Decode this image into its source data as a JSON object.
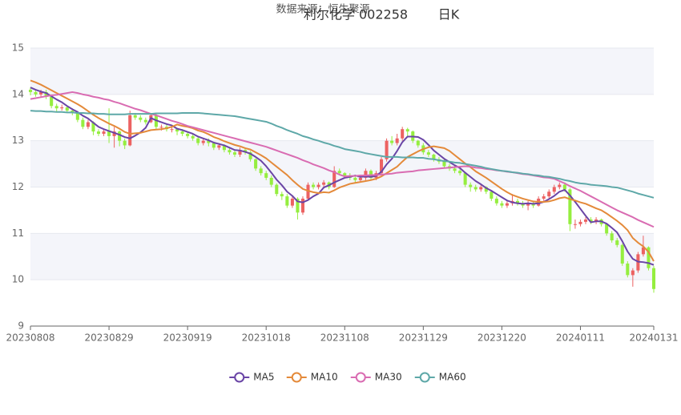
{
  "chart_data": {
    "type": "candlestick",
    "source": "数据来源：恒生聚源",
    "title": "利尔化学 002258",
    "subtitle": "日K",
    "categories": [
      "20230808",
      null,
      null,
      null,
      null,
      null,
      null,
      null,
      null,
      null,
      null,
      null,
      null,
      null,
      null,
      "20230829",
      null,
      null,
      null,
      null,
      null,
      null,
      null,
      null,
      null,
      null,
      null,
      null,
      null,
      null,
      "20230919",
      null,
      null,
      null,
      null,
      null,
      null,
      null,
      null,
      null,
      null,
      null,
      null,
      null,
      null,
      "20231018",
      null,
      null,
      null,
      null,
      null,
      null,
      null,
      null,
      null,
      null,
      null,
      null,
      null,
      null,
      "20231108",
      null,
      null,
      null,
      null,
      null,
      null,
      null,
      null,
      null,
      null,
      null,
      null,
      null,
      null,
      "20231129",
      null,
      null,
      null,
      null,
      null,
      null,
      null,
      null,
      null,
      null,
      null,
      null,
      null,
      null,
      "20231220",
      null,
      null,
      null,
      null,
      null,
      null,
      null,
      null,
      null,
      null,
      null,
      null,
      null,
      null,
      "20240111",
      null,
      null,
      null,
      null,
      null,
      null,
      null,
      null,
      null,
      null,
      null,
      null,
      null,
      "20240131"
    ],
    "candles": {
      "open": [
        14.1,
        14.05,
        14.0,
        14.05,
        13.95,
        13.75,
        13.7,
        13.72,
        13.65,
        13.6,
        13.45,
        13.3,
        13.4,
        13.2,
        13.15,
        13.2,
        13.1,
        13.2,
        13.0,
        12.9,
        13.55,
        13.5,
        13.45,
        13.4,
        13.55,
        13.3,
        13.3,
        13.25,
        13.25,
        13.2,
        13.15,
        13.1,
        13.05,
        12.95,
        13.0,
        12.95,
        12.85,
        12.9,
        12.8,
        12.75,
        12.7,
        12.8,
        12.75,
        12.6,
        12.4,
        12.3,
        12.2,
        12.05,
        11.85,
        11.8,
        11.6,
        11.75,
        11.45,
        11.75,
        12.05,
        12.0,
        12.05,
        12.1,
        12.0,
        12.35,
        12.3,
        12.25,
        12.2,
        12.15,
        12.2,
        12.35,
        12.2,
        12.3,
        12.6,
        13.0,
        12.95,
        13.05,
        13.25,
        13.2,
        13.0,
        12.9,
        12.75,
        12.7,
        12.6,
        12.55,
        12.45,
        12.4,
        12.35,
        12.3,
        12.05,
        12.0,
        11.95,
        12.0,
        11.9,
        11.75,
        11.65,
        11.6,
        11.65,
        11.7,
        11.65,
        11.6,
        11.65,
        11.6,
        11.75,
        11.8,
        11.9,
        12.0,
        12.05,
        11.95,
        11.2,
        11.2,
        11.25,
        11.3,
        11.25,
        11.3,
        11.2,
        11.0,
        10.85,
        10.75,
        10.35,
        10.1,
        10.2,
        10.55,
        10.7,
        10.25
      ],
      "close": [
        14.05,
        14.0,
        14.05,
        13.95,
        13.75,
        13.7,
        13.72,
        13.65,
        13.6,
        13.45,
        13.3,
        13.4,
        13.2,
        13.15,
        13.2,
        13.1,
        13.2,
        13.0,
        12.9,
        13.55,
        13.5,
        13.45,
        13.4,
        13.55,
        13.3,
        13.3,
        13.25,
        13.25,
        13.2,
        13.15,
        13.1,
        13.05,
        12.95,
        13.0,
        12.95,
        12.85,
        12.9,
        12.8,
        12.75,
        12.7,
        12.8,
        12.75,
        12.6,
        12.4,
        12.3,
        12.2,
        12.05,
        11.85,
        11.8,
        11.6,
        11.75,
        11.45,
        11.75,
        12.05,
        12.0,
        12.05,
        12.1,
        12.0,
        12.35,
        12.3,
        12.25,
        12.2,
        12.15,
        12.2,
        12.35,
        12.2,
        12.3,
        12.6,
        13.0,
        12.95,
        13.05,
        13.25,
        13.2,
        13.0,
        12.9,
        12.75,
        12.7,
        12.6,
        12.55,
        12.45,
        12.4,
        12.35,
        12.3,
        12.05,
        12.0,
        11.95,
        12.0,
        11.9,
        11.75,
        11.65,
        11.6,
        11.65,
        11.7,
        11.65,
        11.6,
        11.65,
        11.6,
        11.75,
        11.8,
        11.9,
        12.0,
        12.05,
        11.95,
        11.2,
        11.2,
        11.25,
        11.3,
        11.25,
        11.3,
        11.2,
        11.0,
        10.85,
        10.75,
        10.35,
        10.1,
        10.2,
        10.55,
        10.7,
        10.25,
        9.8
      ],
      "low": [
        13.98,
        13.95,
        13.95,
        13.9,
        13.7,
        13.62,
        13.65,
        13.6,
        13.55,
        13.4,
        13.25,
        13.25,
        13.12,
        13.1,
        13.1,
        12.95,
        12.85,
        12.88,
        12.82,
        12.88,
        13.45,
        13.4,
        13.35,
        13.38,
        13.25,
        13.22,
        13.2,
        13.18,
        13.12,
        13.1,
        13.05,
        13.0,
        12.9,
        12.9,
        12.88,
        12.8,
        12.8,
        12.75,
        12.7,
        12.65,
        12.65,
        12.7,
        12.55,
        12.35,
        12.25,
        12.15,
        12.0,
        11.8,
        11.72,
        11.55,
        11.55,
        11.3,
        11.4,
        11.72,
        11.95,
        11.95,
        12.0,
        11.95,
        11.98,
        12.25,
        12.2,
        12.15,
        12.1,
        12.1,
        12.15,
        12.15,
        12.15,
        12.28,
        12.55,
        12.9,
        12.9,
        13.0,
        13.1,
        12.95,
        12.85,
        12.7,
        12.65,
        12.55,
        12.5,
        12.4,
        12.35,
        12.3,
        12.25,
        12.0,
        11.9,
        11.9,
        11.9,
        11.85,
        11.7,
        11.6,
        11.55,
        11.55,
        11.6,
        11.6,
        11.55,
        11.5,
        11.55,
        11.58,
        11.7,
        11.75,
        11.85,
        11.95,
        11.9,
        11.05,
        11.1,
        11.15,
        11.2,
        11.2,
        11.2,
        11.15,
        10.95,
        10.8,
        10.7,
        10.3,
        10.05,
        9.85,
        10.15,
        10.5,
        10.2,
        9.72
      ],
      "high": [
        14.15,
        14.1,
        14.1,
        14.1,
        14.0,
        13.8,
        13.78,
        13.75,
        13.7,
        13.62,
        13.5,
        13.45,
        13.42,
        13.25,
        13.25,
        13.7,
        13.3,
        13.22,
        13.05,
        13.65,
        13.6,
        13.55,
        13.5,
        13.6,
        13.58,
        13.35,
        13.35,
        13.3,
        13.28,
        13.25,
        13.2,
        13.15,
        13.1,
        13.05,
        13.05,
        12.98,
        12.95,
        12.92,
        12.85,
        12.8,
        12.85,
        12.85,
        12.78,
        12.62,
        12.45,
        12.35,
        12.25,
        12.08,
        11.9,
        11.85,
        11.8,
        11.78,
        11.8,
        12.1,
        12.1,
        12.1,
        12.15,
        12.12,
        12.45,
        12.4,
        12.32,
        12.3,
        12.25,
        12.25,
        12.4,
        12.38,
        12.35,
        12.65,
        13.05,
        13.1,
        13.15,
        13.3,
        13.28,
        13.22,
        13.02,
        12.95,
        12.8,
        12.72,
        12.65,
        12.6,
        12.5,
        12.45,
        12.4,
        12.32,
        12.1,
        12.05,
        12.05,
        12.02,
        11.92,
        11.8,
        11.7,
        11.7,
        11.85,
        11.75,
        11.7,
        11.7,
        11.7,
        11.8,
        11.85,
        11.95,
        12.05,
        12.1,
        12.1,
        11.98,
        11.3,
        11.3,
        11.35,
        11.35,
        11.35,
        11.32,
        11.22,
        11.05,
        10.9,
        10.78,
        10.4,
        10.25,
        10.6,
        10.95,
        10.72,
        10.3
      ]
    },
    "up_color": "#ec6262",
    "down_color": "#95ee3f",
    "series": [
      {
        "name": "MA5",
        "color": "#6a45a6",
        "values": [
          14.15,
          14.1,
          14.06,
          14.03,
          13.96,
          13.89,
          13.83,
          13.75,
          13.68,
          13.62,
          13.54,
          13.48,
          13.39,
          13.3,
          13.25,
          13.21,
          13.17,
          13.13,
          13.08,
          13.05,
          13.11,
          13.18,
          13.28,
          13.49,
          13.44,
          13.4,
          13.36,
          13.33,
          13.26,
          13.23,
          13.19,
          13.15,
          13.09,
          13.05,
          13.01,
          12.96,
          12.93,
          12.9,
          12.85,
          12.8,
          12.79,
          12.76,
          12.72,
          12.65,
          12.57,
          12.45,
          12.31,
          12.16,
          12.04,
          11.9,
          11.81,
          11.69,
          11.67,
          11.72,
          11.8,
          11.86,
          11.99,
          12.04,
          12.1,
          12.15,
          12.2,
          12.22,
          12.25,
          12.22,
          12.23,
          12.22,
          12.24,
          12.33,
          12.49,
          12.61,
          12.78,
          12.97,
          13.09,
          13.09,
          13.08,
          13.02,
          12.91,
          12.79,
          12.7,
          12.61,
          12.54,
          12.47,
          12.41,
          12.31,
          12.22,
          12.13,
          12.06,
          11.98,
          11.92,
          11.85,
          11.78,
          11.71,
          11.67,
          11.65,
          11.64,
          11.65,
          11.64,
          11.65,
          11.68,
          11.74,
          11.81,
          11.9,
          11.94,
          11.82,
          11.68,
          11.53,
          11.38,
          11.24,
          11.26,
          11.26,
          11.21,
          11.12,
          11.02,
          10.83,
          10.61,
          10.45,
          10.39,
          10.38,
          10.36,
          10.32
        ]
      },
      {
        "name": "MA10",
        "color": "#e48a3a",
        "values": [
          14.3,
          14.26,
          14.21,
          14.15,
          14.09,
          14.03,
          13.97,
          13.91,
          13.85,
          13.79,
          13.72,
          13.64,
          13.56,
          13.49,
          13.43,
          13.37,
          13.32,
          13.26,
          13.19,
          13.15,
          13.16,
          13.17,
          13.2,
          13.23,
          13.24,
          13.25,
          13.27,
          13.3,
          13.35,
          13.32,
          13.3,
          13.27,
          13.22,
          13.19,
          13.14,
          13.08,
          13.04,
          12.99,
          12.95,
          12.91,
          12.88,
          12.84,
          12.81,
          12.75,
          12.69,
          12.62,
          12.53,
          12.44,
          12.35,
          12.26,
          12.15,
          12.05,
          11.96,
          11.92,
          11.89,
          11.87,
          11.89,
          11.88,
          11.93,
          11.99,
          12.03,
          12.07,
          12.09,
          12.11,
          12.13,
          12.15,
          12.18,
          12.23,
          12.3,
          12.37,
          12.44,
          12.55,
          12.65,
          12.71,
          12.77,
          12.82,
          12.86,
          12.88,
          12.86,
          12.84,
          12.78,
          12.69,
          12.6,
          12.51,
          12.43,
          12.34,
          12.27,
          12.2,
          12.12,
          12.04,
          11.96,
          11.89,
          11.83,
          11.79,
          11.75,
          11.72,
          11.69,
          11.68,
          11.68,
          11.69,
          11.72,
          11.76,
          11.78,
          11.74,
          11.71,
          11.67,
          11.64,
          11.59,
          11.54,
          11.5,
          11.43,
          11.35,
          11.27,
          11.18,
          11.07,
          10.9,
          10.8,
          10.72,
          10.6,
          10.4
        ]
      },
      {
        "name": "MA30",
        "color": "#d96cb2",
        "values": [
          13.9,
          13.92,
          13.94,
          13.96,
          13.98,
          13.99,
          14.01,
          14.03,
          14.05,
          14.03,
          14.0,
          13.98,
          13.95,
          13.93,
          13.9,
          13.88,
          13.84,
          13.81,
          13.77,
          13.73,
          13.69,
          13.66,
          13.62,
          13.58,
          13.55,
          13.51,
          13.47,
          13.43,
          13.4,
          13.36,
          13.32,
          13.29,
          13.26,
          13.23,
          13.2,
          13.17,
          13.14,
          13.11,
          13.08,
          13.05,
          13.02,
          12.99,
          12.96,
          12.93,
          12.9,
          12.87,
          12.83,
          12.79,
          12.75,
          12.71,
          12.67,
          12.63,
          12.58,
          12.54,
          12.49,
          12.45,
          12.41,
          12.36,
          12.32,
          12.27,
          12.23,
          12.24,
          12.24,
          12.25,
          12.25,
          12.26,
          12.26,
          12.27,
          12.28,
          12.29,
          12.31,
          12.32,
          12.33,
          12.34,
          12.36,
          12.37,
          12.38,
          12.39,
          12.4,
          12.41,
          12.42,
          12.43,
          12.44,
          12.45,
          12.44,
          12.42,
          12.41,
          12.39,
          12.38,
          12.36,
          12.35,
          12.33,
          12.32,
          12.3,
          12.28,
          12.27,
          12.25,
          12.23,
          12.21,
          12.2,
          12.18,
          12.13,
          12.08,
          12.02,
          11.97,
          11.92,
          11.86,
          11.8,
          11.74,
          11.68,
          11.62,
          11.56,
          11.5,
          11.45,
          11.4,
          11.35,
          11.29,
          11.24,
          11.19,
          11.14
        ]
      },
      {
        "name": "MA60",
        "color": "#5ea8a8",
        "values": [
          13.65,
          13.64,
          13.64,
          13.63,
          13.63,
          13.62,
          13.62,
          13.61,
          13.61,
          13.6,
          13.6,
          13.59,
          13.59,
          13.58,
          13.58,
          13.57,
          13.57,
          13.57,
          13.57,
          13.58,
          13.58,
          13.58,
          13.58,
          13.58,
          13.59,
          13.59,
          13.59,
          13.59,
          13.59,
          13.6,
          13.6,
          13.6,
          13.6,
          13.59,
          13.58,
          13.57,
          13.56,
          13.55,
          13.54,
          13.53,
          13.51,
          13.49,
          13.47,
          13.45,
          13.43,
          13.41,
          13.37,
          13.32,
          13.28,
          13.23,
          13.19,
          13.15,
          13.1,
          13.07,
          13.03,
          13.0,
          12.96,
          12.93,
          12.89,
          12.86,
          12.82,
          12.8,
          12.78,
          12.76,
          12.73,
          12.71,
          12.69,
          12.67,
          12.65,
          12.65,
          12.65,
          12.64,
          12.64,
          12.64,
          12.63,
          12.63,
          12.61,
          12.6,
          12.58,
          12.56,
          12.55,
          12.53,
          12.52,
          12.5,
          12.48,
          12.46,
          12.44,
          12.41,
          12.39,
          12.37,
          12.35,
          12.34,
          12.32,
          12.31,
          12.29,
          12.28,
          12.26,
          12.25,
          12.23,
          12.22,
          12.2,
          12.18,
          12.15,
          12.13,
          12.1,
          12.08,
          12.07,
          12.05,
          12.04,
          12.03,
          12.02,
          12.0,
          11.99,
          11.96,
          11.93,
          11.9,
          11.86,
          11.83,
          11.8,
          11.77
        ]
      }
    ],
    "ylim": [
      9,
      15
    ],
    "yticks": [
      9,
      10,
      11,
      12,
      13,
      14,
      15
    ],
    "grid": true,
    "split_area": true,
    "legend": "bottom"
  }
}
